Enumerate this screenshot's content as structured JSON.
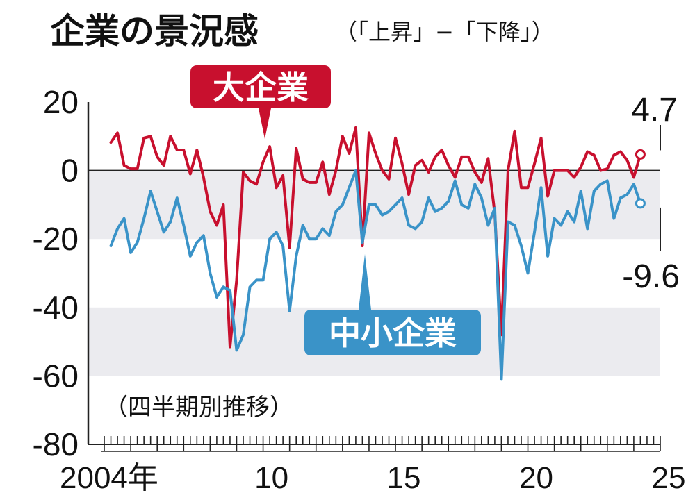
{
  "chart_data": {
    "type": "line",
    "title": "企業の景況感",
    "subtitle": "（「上昇」−「下降」）",
    "note": "（四半期別推移）",
    "x_tick_labels": [
      "2004年",
      "10",
      "15",
      "20",
      "25"
    ],
    "ylim": [
      -80,
      20
    ],
    "yticks": [
      "20",
      "0",
      "-20",
      "-40",
      "-60",
      "-80"
    ],
    "shaded_bands": [
      [
        -20,
        0
      ],
      [
        -60,
        -40
      ]
    ],
    "series": [
      {
        "name": "大企業",
        "color": "#c8102e",
        "end_label": "4.7",
        "values": [
          8.2,
          11,
          1.5,
          0.5,
          0.5,
          9.5,
          10,
          4,
          1.5,
          10,
          6,
          6,
          -1,
          6,
          -2,
          -12,
          -16,
          -10,
          -51.5,
          -32,
          -0.5,
          -3,
          -4,
          2.5,
          7,
          -5,
          -1.5,
          -22.5,
          6.5,
          -2.5,
          -3.5,
          -3.5,
          2.5,
          -7,
          0,
          10,
          5,
          12.5,
          -22,
          11,
          5,
          0,
          -2.5,
          9.5,
          2,
          -7,
          1.5,
          3,
          -0.5,
          4,
          6,
          1.5,
          -2,
          4,
          4,
          -0.5,
          -3.5,
          3.5,
          -12.5,
          -48,
          0,
          11.5,
          -5,
          -5,
          2,
          9.5,
          -7.5,
          0,
          0,
          0,
          -2,
          1,
          5.5,
          4.5,
          0,
          0.5,
          4.5,
          5.5,
          3,
          -2,
          4.7
        ]
      },
      {
        "name": "中小企業",
        "color": "#3a93c8",
        "end_label": "-9.6",
        "values": [
          -22,
          -17,
          -14,
          -24,
          -21,
          -14,
          -6,
          -12,
          -18,
          -15,
          -8,
          -16,
          -25,
          -21,
          -19,
          -30,
          -37,
          -34,
          -35,
          -52.5,
          -48,
          -34,
          -32,
          -32,
          -20,
          -18,
          -22,
          -41,
          -25,
          -16,
          -20,
          -20,
          -17,
          -19,
          -12,
          -10,
          -5,
          0,
          -21,
          -10,
          -10,
          -13,
          -12,
          -10,
          -8,
          -16,
          -17,
          -15,
          -8,
          -12,
          -11,
          -9,
          -3,
          -10,
          -11,
          -4,
          -8,
          -16,
          -11,
          -61,
          -15,
          -16,
          -22,
          -30,
          -18,
          -5,
          -25,
          -14,
          -16,
          -12,
          -15,
          -6,
          -17,
          -6,
          -4,
          -3,
          -14,
          -8,
          -7,
          -4,
          -9.6
        ]
      }
    ]
  }
}
